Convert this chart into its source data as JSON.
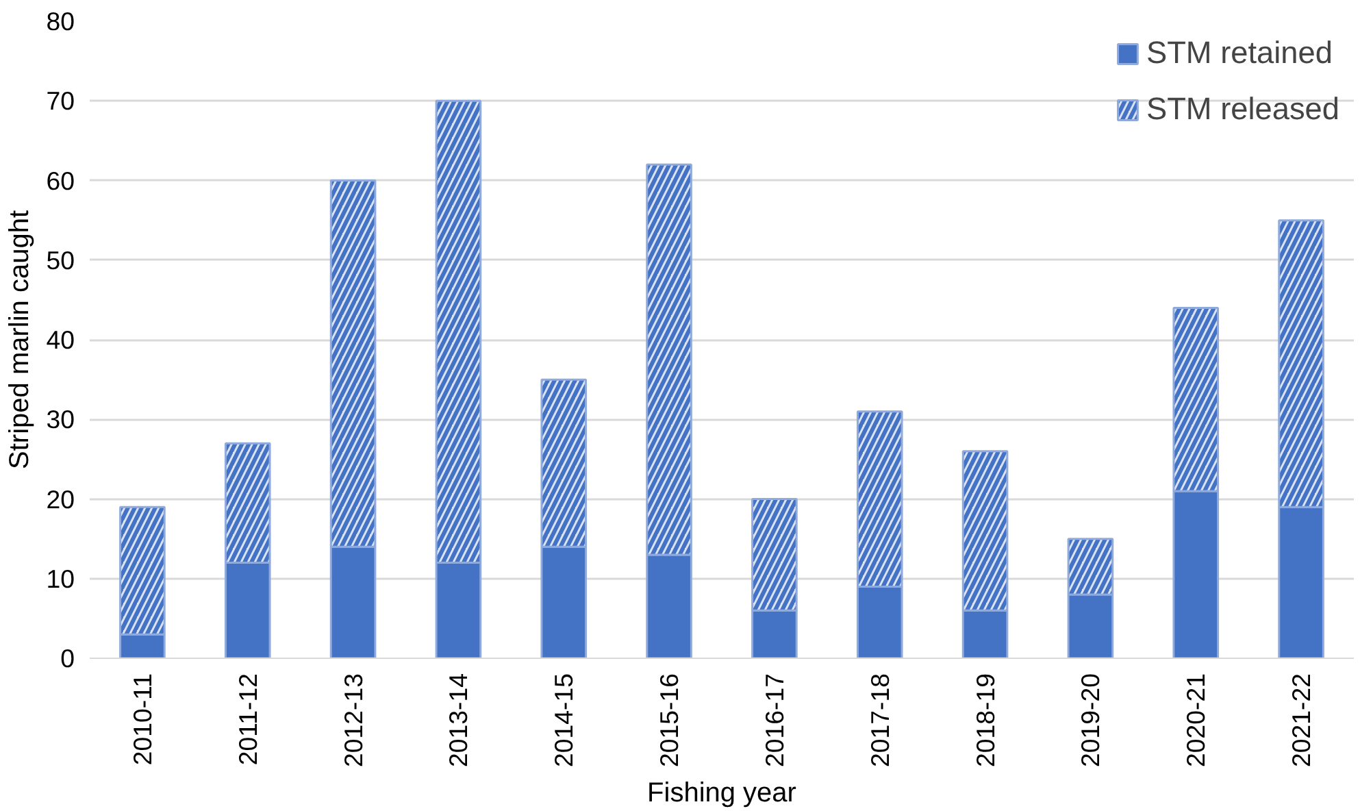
{
  "chart_data": {
    "type": "bar",
    "stacked": true,
    "xlabel": "Fishing year",
    "ylabel": "Striped marlin caught",
    "categories": [
      "2010-11",
      "2011-12",
      "2012-13",
      "2013-14",
      "2014-15",
      "2015-16",
      "2016-17",
      "2017-18",
      "2018-19",
      "2019-20",
      "2020-21",
      "2021-22"
    ],
    "series": [
      {
        "name": "STM retained",
        "color": "#4472c4",
        "values": [
          3,
          12,
          14,
          12,
          14,
          13,
          6,
          9,
          6,
          8,
          21,
          19
        ]
      },
      {
        "name": "STM released",
        "color": "#dae3f3",
        "values": [
          16,
          15,
          46,
          58,
          21,
          49,
          14,
          22,
          20,
          7,
          23,
          36
        ]
      }
    ],
    "ylim": [
      0,
      80
    ],
    "yticks": [
      0,
      10,
      20,
      30,
      40,
      50,
      60,
      70,
      80
    ],
    "grid": "y",
    "legend": "top right"
  }
}
